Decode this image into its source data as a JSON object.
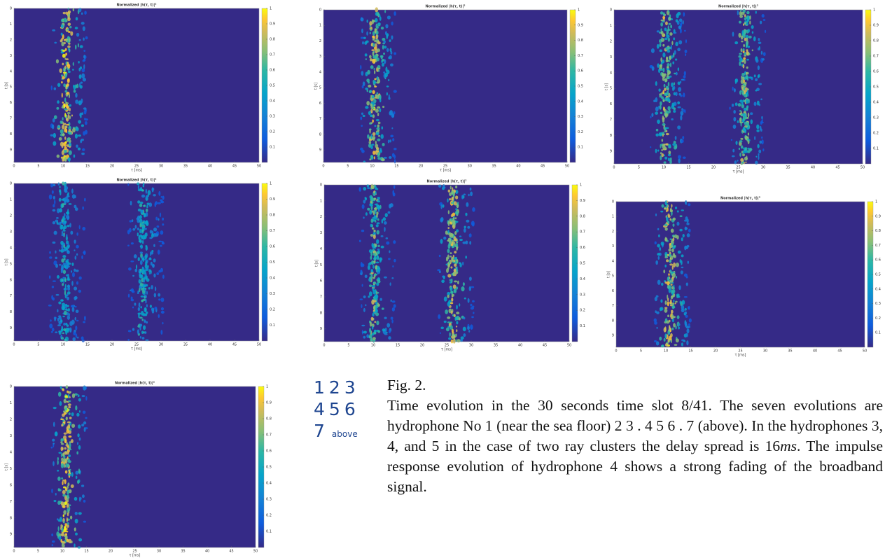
{
  "figure": {
    "panel_title": "Normalized |h(τ, t)|²",
    "xlabel": "τ [ms]",
    "ylabel": "t [s]",
    "xlim": [
      0,
      50
    ],
    "ylim": [
      0,
      9.8
    ],
    "xticks": [
      0,
      5,
      10,
      15,
      20,
      25,
      30,
      35,
      40,
      45,
      50
    ],
    "yticks": [
      0,
      1,
      2,
      3,
      4,
      5,
      6,
      7,
      8,
      9
    ],
    "cbar_lim": [
      0,
      1
    ],
    "cbar_ticks": [
      0.1,
      0.2,
      0.3,
      0.4,
      0.5,
      0.6,
      0.7,
      0.8,
      0.9,
      1
    ]
  },
  "key": {
    "rows": [
      [
        "1",
        "2",
        "3"
      ],
      [
        "4",
        "5",
        "6"
      ],
      [
        "7",
        "above"
      ]
    ]
  },
  "caption": {
    "label": "Fig. 2.",
    "text_before": "Time evolution in the 30 seconds time slot 8/41. The seven evolutions are hydrophone No 1 (near the sea floor) 2 3 . 4 5 6 . 7 (above). In the hydrophones 3, 4, and 5 in the case of two ray clusters the delay spread is ",
    "math_num": "16",
    "math_unit": "ms",
    "text_after": ". The impulse response evolution of hydrophone 4 shows a strong fading of the broadband signal."
  }
}
